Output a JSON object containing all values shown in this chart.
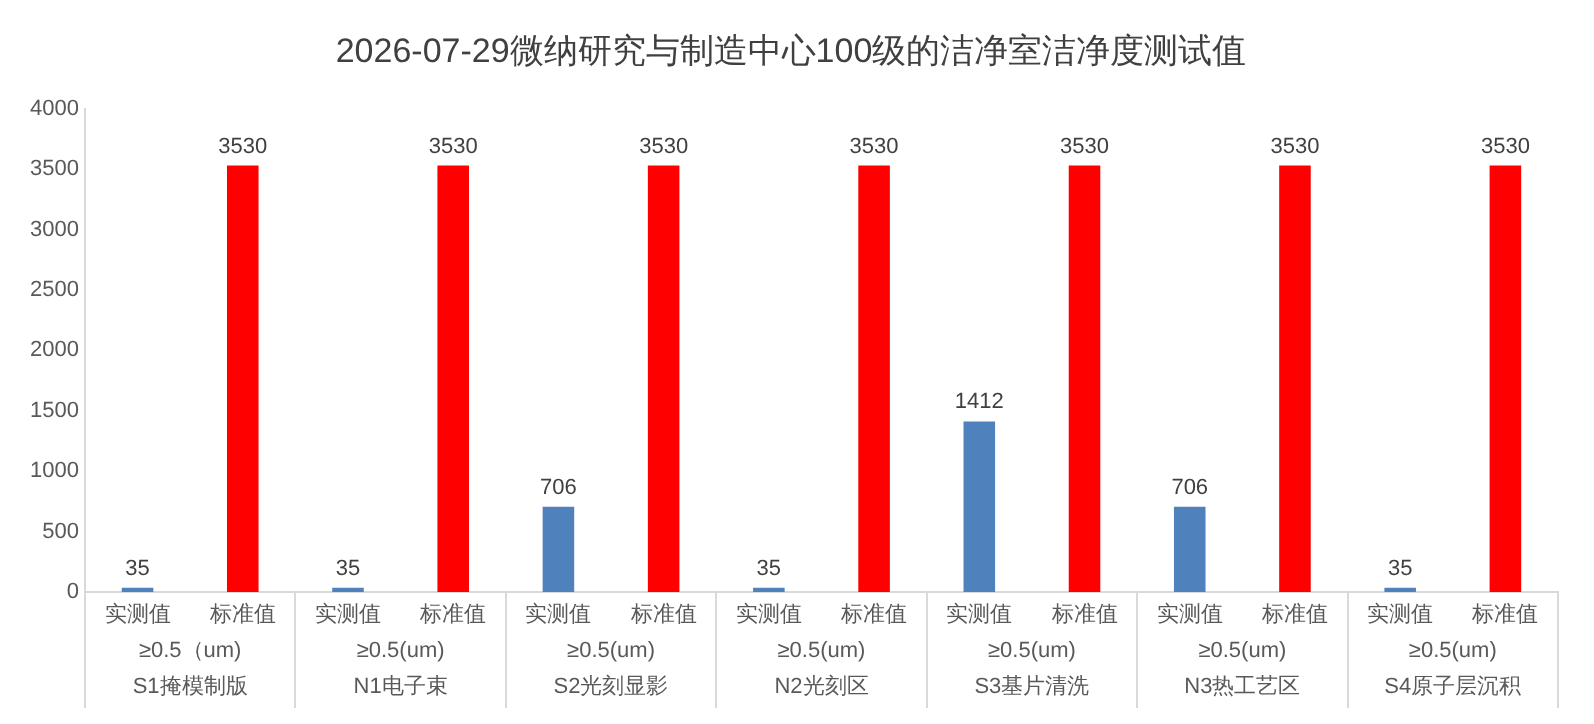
{
  "chart_data": {
    "type": "bar",
    "title": "2026-07-29微纳研究与制造中心100级的洁净室洁净度测试值",
    "categories": [
      "≥0.5（um)\nS1掩模制版",
      "≥0.5(um)\nN1电子束",
      "≥0.5(um)\nS2光刻显影",
      "≥0.5(um)\nN2光刻区",
      "≥0.5(um)\nS3基片清洗",
      "≥0.5(um)\nN3热工艺区",
      "≥0.5(um)\nS4原子层沉积"
    ],
    "series": [
      {
        "name": "实测值",
        "color": "#4f81bd",
        "values": [
          35,
          35,
          706,
          35,
          1412,
          706,
          35
        ]
      },
      {
        "name": "标准值",
        "color": "#ff0000",
        "values": [
          3530,
          3530,
          3530,
          3530,
          3530,
          3530,
          3530
        ]
      }
    ],
    "ylim": [
      0,
      4000
    ],
    "yticks": [
      0,
      500,
      1000,
      1500,
      2000,
      2500,
      3000,
      3500,
      4000
    ],
    "grid": false,
    "legend": false,
    "data_labels": true
  }
}
